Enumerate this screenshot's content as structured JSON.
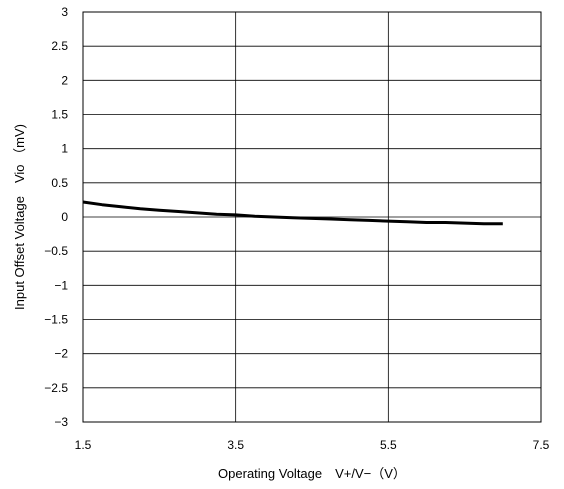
{
  "chart_data": {
    "type": "line",
    "xlabel": "Operating Voltage　V+/V−（V）",
    "ylabel": "Input Offset Voltage　Vio （mV)",
    "xlim": [
      1.5,
      7.5
    ],
    "ylim": [
      -3,
      3
    ],
    "xticks": [
      1.5,
      3.5,
      5.5,
      7.5
    ],
    "xtick_labels": [
      "1.5",
      "3.5",
      "5.5",
      "7.5"
    ],
    "yticks": [
      3,
      2.5,
      2,
      1.5,
      1,
      0.5,
      0,
      -0.5,
      -1,
      -1.5,
      -2,
      -2.5,
      -3
    ],
    "ytick_labels": [
      "3",
      "2.5",
      "2",
      "1.5",
      "1",
      "0.5",
      "0",
      "−0.5",
      "−1",
      "−1.5",
      "−2",
      "−2.5",
      "−3"
    ],
    "grid": true,
    "series": [
      {
        "x": [
          1.5,
          1.75,
          2.0,
          2.25,
          2.5,
          2.75,
          3.0,
          3.25,
          3.5,
          3.75,
          4.0,
          4.25,
          4.5,
          4.75,
          5.0,
          5.25,
          5.5,
          5.75,
          6.0,
          6.25,
          6.5,
          6.75,
          7.0
        ],
        "y": [
          0.22,
          0.18,
          0.15,
          0.12,
          0.1,
          0.08,
          0.06,
          0.04,
          0.03,
          0.01,
          0.0,
          -0.01,
          -0.02,
          -0.03,
          -0.04,
          -0.05,
          -0.06,
          -0.07,
          -0.08,
          -0.08,
          -0.09,
          -0.1,
          -0.1
        ],
        "color": "#000000"
      }
    ]
  }
}
